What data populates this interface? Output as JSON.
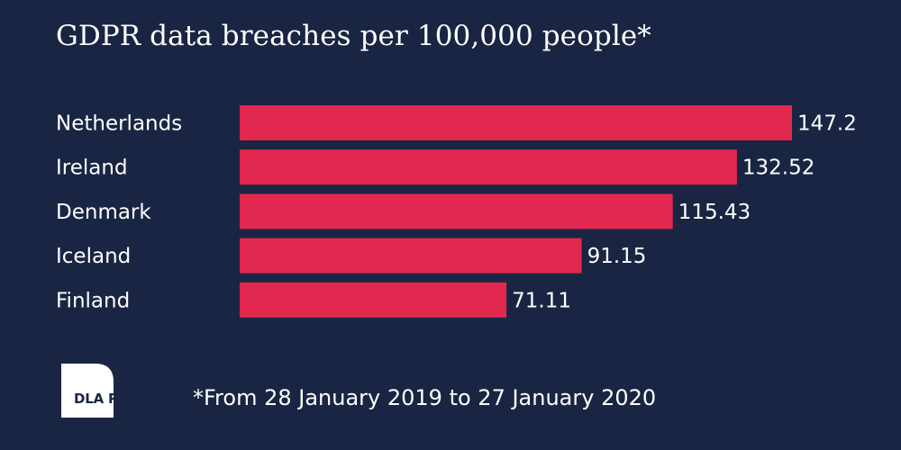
{
  "colors": {
    "background": "#1a2543",
    "bar": "#e3284f",
    "text": "#ffffff"
  },
  "chart_data": {
    "type": "bar",
    "orientation": "horizontal",
    "title": "GDPR data breaches per 100,000 people*",
    "categories": [
      "Netherlands",
      "Ireland",
      "Denmark",
      "Iceland",
      "Finland"
    ],
    "values": [
      147.2,
      132.52,
      115.43,
      91.15,
      71.11
    ],
    "value_labels": [
      "147.2",
      "132.52",
      "115.43",
      "91.15",
      "71.11"
    ],
    "xlim": [
      0,
      147.2
    ],
    "grid": false,
    "legend": "none"
  },
  "footnote": "*From 28 January 2019 to 27 January 2020",
  "logo": {
    "text": "DLA PIPER"
  }
}
